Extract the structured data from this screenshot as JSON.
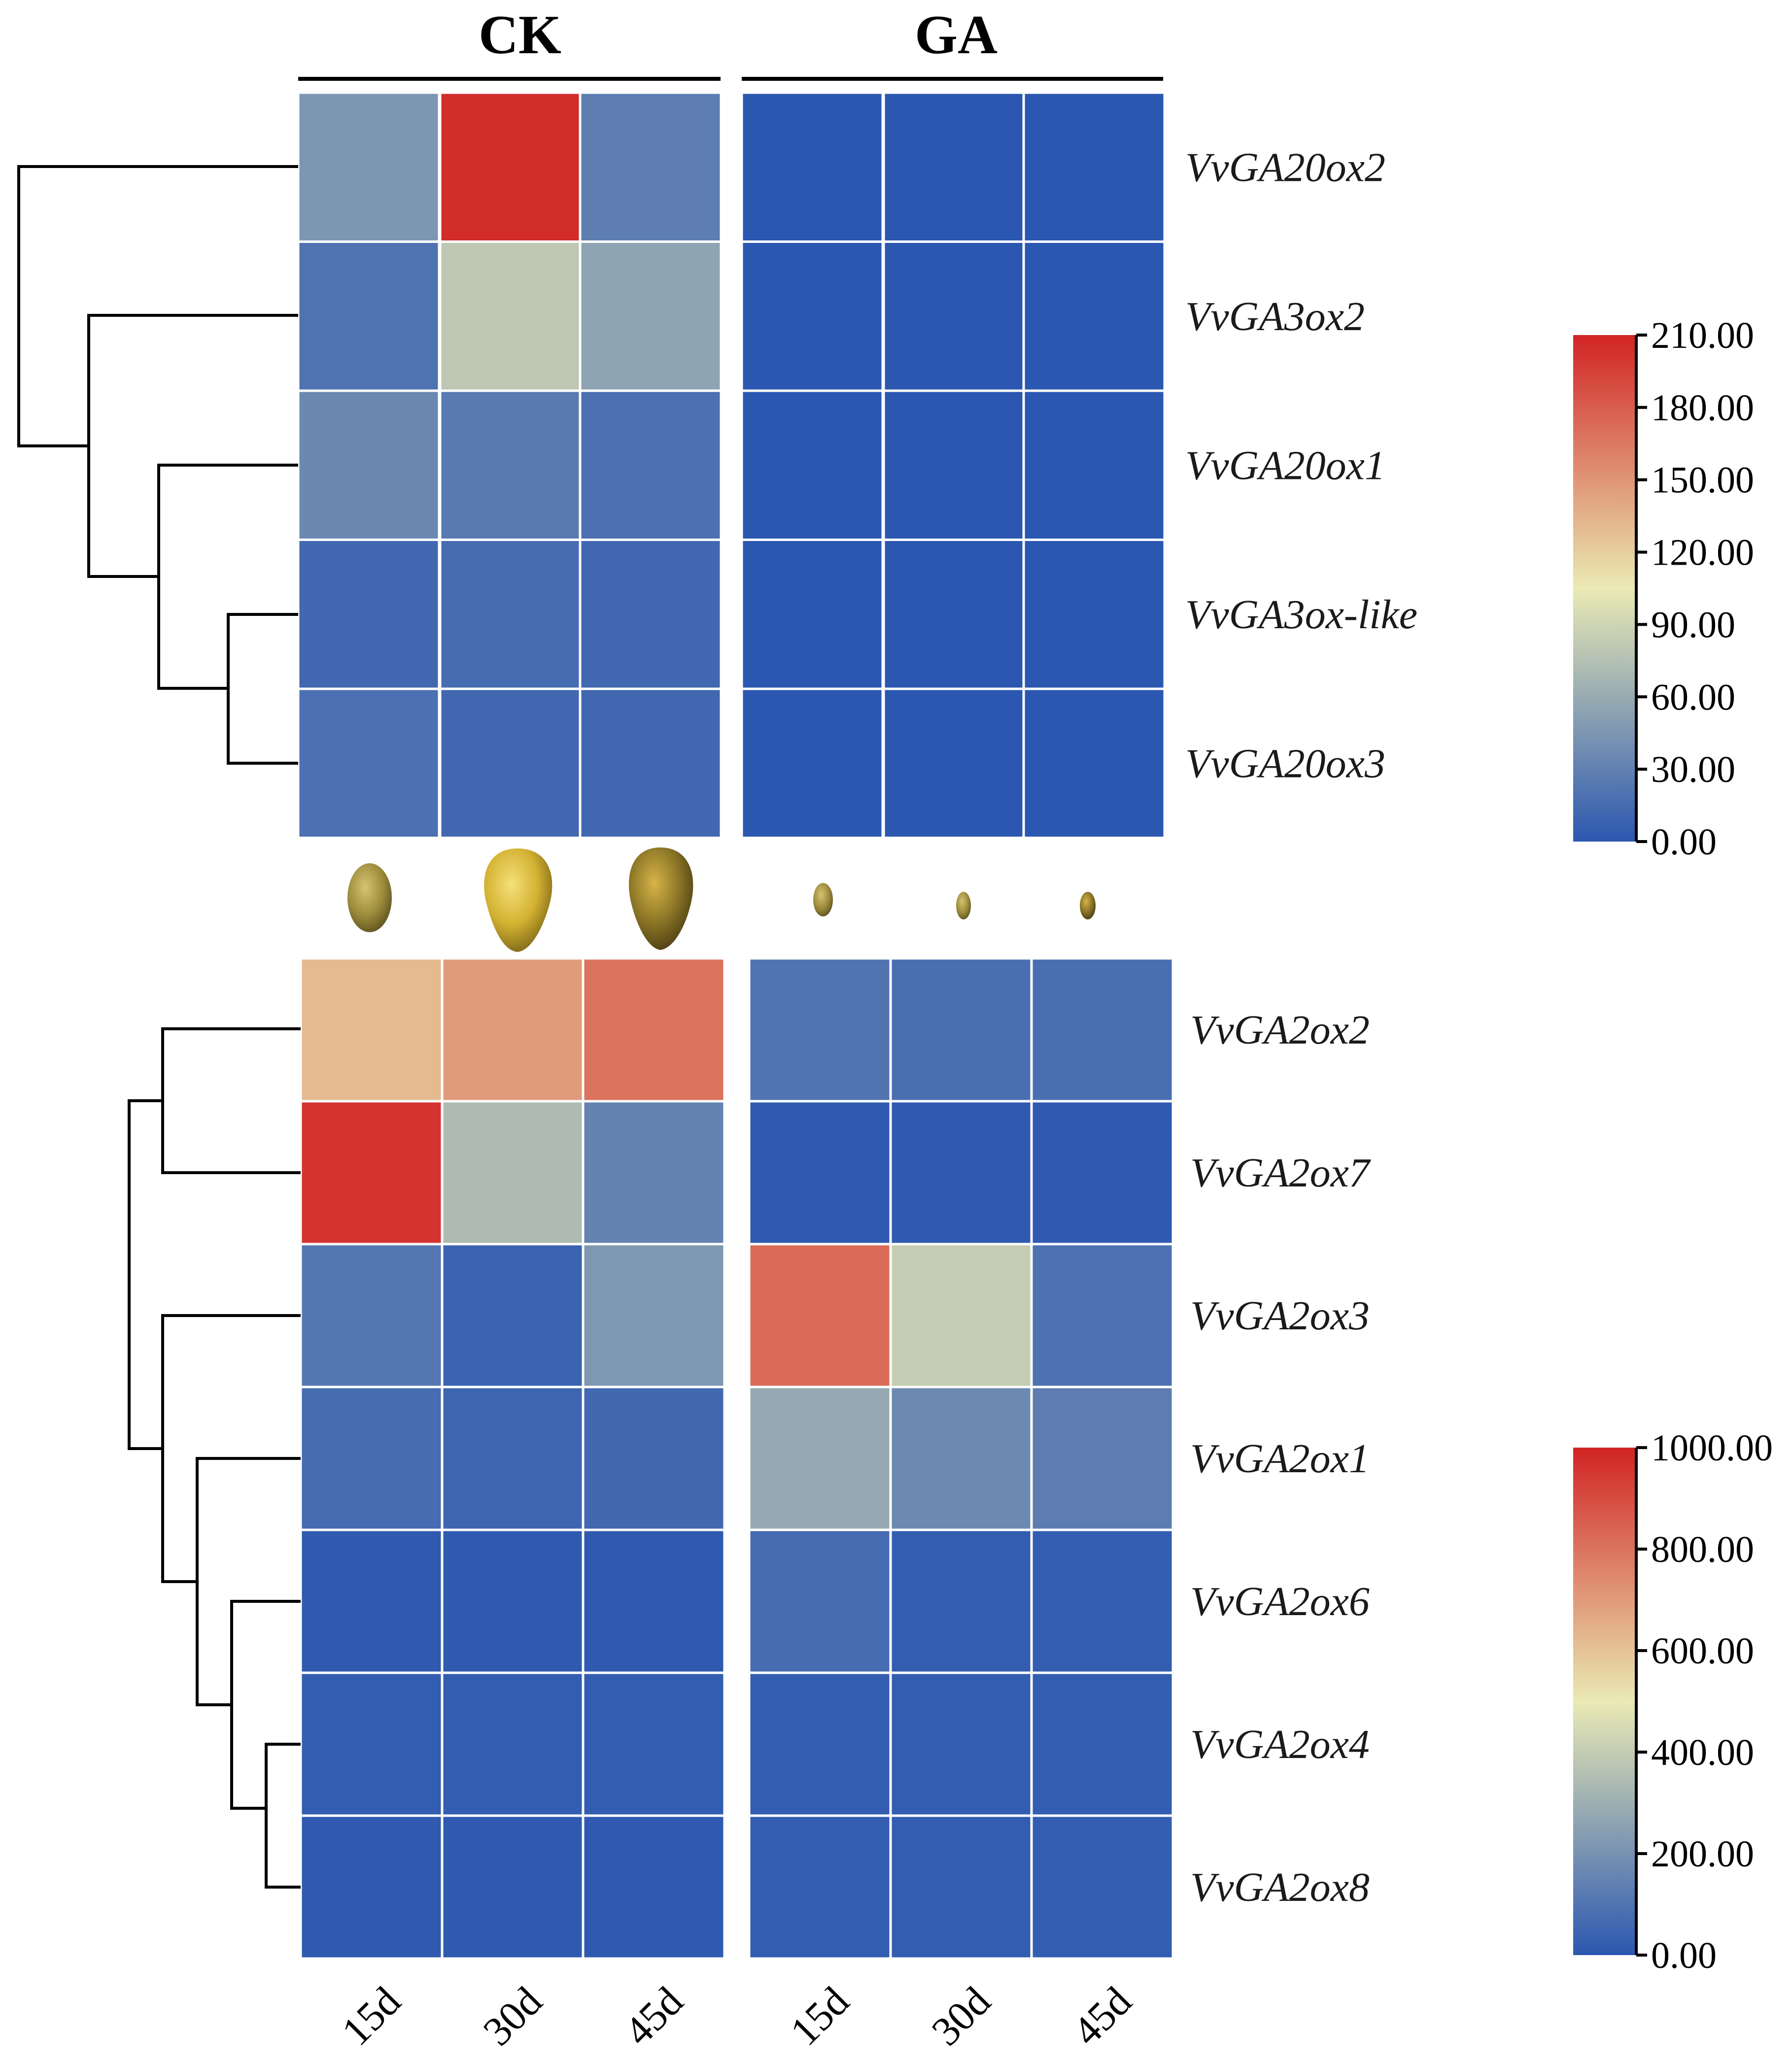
{
  "chart_data": [
    {
      "type": "heatmap",
      "groups": [
        "CK",
        "GA"
      ],
      "conditions": [
        "15d",
        "30d",
        "45d",
        "15d",
        "30d",
        "45d"
      ],
      "rows": [
        "VvGA20ox2",
        "VvGA3ox2",
        "VvGA20ox1",
        "VvGA3ox-like",
        "VvGA20ox3"
      ],
      "values": [
        [
          45,
          205,
          28,
          0,
          0,
          0
        ],
        [
          20,
          80,
          55,
          0,
          0,
          0
        ],
        [
          35,
          25,
          18,
          0,
          0,
          0
        ],
        [
          12,
          15,
          12,
          0,
          0,
          0
        ],
        [
          18,
          12,
          12,
          0,
          0,
          0
        ]
      ],
      "colorbar": {
        "min": 0,
        "max": 210,
        "ticks": [
          "210.00",
          "180.00",
          "150.00",
          "120.00",
          "90.00",
          "60.00",
          "30.00",
          "0.00"
        ],
        "tick_values": [
          210,
          180,
          150,
          120,
          90,
          60,
          30,
          0
        ]
      },
      "colorscale": [
        "#2b57b0",
        "#eaeab4",
        "#d12424"
      ]
    },
    {
      "type": "heatmap",
      "groups": [
        "CK",
        "GA"
      ],
      "conditions": [
        "15d",
        "30d",
        "45d",
        "15d",
        "30d",
        "45d"
      ],
      "rows": [
        "VvGA2ox2",
        "VvGA2ox7",
        "VvGA2ox3",
        "VvGA2ox1",
        "VvGA2ox6",
        "VvGA2ox4",
        "VvGA2ox8"
      ],
      "values": [
        [
          620,
          700,
          800,
          100,
          80,
          80
        ],
        [
          960,
          340,
          150,
          10,
          10,
          10
        ],
        [
          110,
          40,
          220,
          820,
          400,
          90
        ],
        [
          70,
          50,
          60,
          280,
          170,
          130
        ],
        [
          10,
          10,
          10,
          70,
          20,
          20
        ],
        [
          20,
          20,
          20,
          20,
          20,
          20
        ],
        [
          10,
          10,
          10,
          20,
          20,
          20
        ]
      ],
      "colorbar": {
        "min": 0,
        "max": 1000,
        "ticks": [
          "1000.00",
          "800.00",
          "600.00",
          "400.00",
          "200.00",
          "0.00"
        ],
        "tick_values": [
          1000,
          800,
          600,
          400,
          200,
          0
        ]
      },
      "colorscale": [
        "#2b57b0",
        "#eaeab4",
        "#d12424"
      ]
    }
  ],
  "seed_images": "grape seeds"
}
